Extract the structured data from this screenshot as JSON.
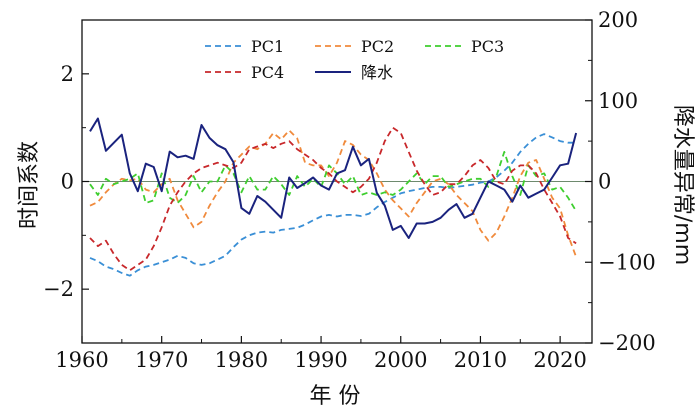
{
  "chart_data": {
    "type": "line",
    "xlabel": "年 份",
    "ylabel_left": "时间系数",
    "ylabel_right": "降水量异常/mm",
    "xlim": [
      1960,
      2024
    ],
    "ylim_left": [
      -3,
      3
    ],
    "ylim_right": [
      -200,
      200
    ],
    "x_ticks": [
      "1960",
      "1970",
      "1980",
      "1990",
      "2000",
      "2010",
      "2020"
    ],
    "y_ticks_left": [
      "−2",
      "0",
      "2"
    ],
    "y_ticks_right": [
      "−200",
      "−100",
      "0",
      "100",
      "200"
    ],
    "zero_line": true,
    "legend_position": "top-center",
    "x": [
      1961,
      1962,
      1963,
      1964,
      1965,
      1966,
      1967,
      1968,
      1969,
      1970,
      1971,
      1972,
      1973,
      1974,
      1975,
      1976,
      1977,
      1978,
      1979,
      1980,
      1981,
      1982,
      1983,
      1984,
      1985,
      1986,
      1987,
      1988,
      1989,
      1990,
      1991,
      1992,
      1993,
      1994,
      1995,
      1996,
      1997,
      1998,
      1999,
      2000,
      2001,
      2002,
      2003,
      2004,
      2005,
      2006,
      2007,
      2008,
      2009,
      2010,
      2011,
      2012,
      2013,
      2014,
      2015,
      2016,
      2017,
      2018,
      2019,
      2020,
      2021,
      2022
    ],
    "series": [
      {
        "name": "PC1",
        "axis": "left",
        "color": "#3a8fd6",
        "dash": "6,4",
        "values": [
          -1.42,
          -1.48,
          -1.58,
          -1.63,
          -1.7,
          -1.75,
          -1.65,
          -1.58,
          -1.55,
          -1.5,
          -1.45,
          -1.38,
          -1.42,
          -1.52,
          -1.55,
          -1.52,
          -1.45,
          -1.38,
          -1.22,
          -1.08,
          -1.0,
          -0.95,
          -0.93,
          -0.95,
          -0.9,
          -0.88,
          -0.86,
          -0.8,
          -0.72,
          -0.65,
          -0.62,
          -0.65,
          -0.62,
          -0.62,
          -0.64,
          -0.6,
          -0.48,
          -0.38,
          -0.3,
          -0.22,
          -0.18,
          -0.15,
          -0.12,
          -0.1,
          -0.1,
          -0.12,
          -0.1,
          -0.08,
          -0.06,
          -0.02,
          0.0,
          0.08,
          0.2,
          0.35,
          0.55,
          0.7,
          0.82,
          0.88,
          0.82,
          0.75,
          0.72,
          0.72
        ]
      },
      {
        "name": "PC2",
        "axis": "left",
        "color": "#f08a3c",
        "dash": "6,4",
        "values": [
          -0.45,
          -0.38,
          -0.2,
          -0.05,
          0.05,
          0.02,
          0.05,
          -0.15,
          -0.2,
          -0.05,
          0.05,
          -0.35,
          -0.6,
          -0.85,
          -0.75,
          -0.45,
          -0.2,
          0.0,
          0.35,
          0.5,
          0.65,
          0.6,
          0.7,
          0.9,
          0.78,
          0.95,
          0.8,
          0.35,
          0.3,
          0.3,
          0.1,
          0.35,
          0.75,
          0.68,
          0.5,
          0.4,
          0.15,
          -0.15,
          -0.35,
          -0.5,
          -0.65,
          -0.4,
          -0.2,
          0.0,
          0.05,
          -0.05,
          -0.25,
          -0.4,
          -0.55,
          -0.9,
          -1.1,
          -0.95,
          -0.65,
          -0.3,
          0.1,
          0.35,
          0.4,
          0.05,
          -0.3,
          -0.5,
          -1.0,
          -1.4
        ]
      },
      {
        "name": "PC3",
        "axis": "left",
        "color": "#3fce2f",
        "dash": "6,4",
        "values": [
          -0.05,
          -0.25,
          0.05,
          -0.05,
          0.0,
          0.05,
          0.15,
          -0.4,
          -0.35,
          0.15,
          -0.3,
          -0.4,
          -0.25,
          0.1,
          -0.2,
          0.0,
          0.0,
          0.3,
          0.15,
          -0.2,
          0.1,
          -0.15,
          -0.15,
          0.1,
          -0.05,
          -0.25,
          0.1,
          -0.1,
          0.05,
          -0.1,
          0.3,
          0.15,
          -0.05,
          0.1,
          -0.25,
          -0.2,
          -0.25,
          -0.2,
          -0.25,
          -0.15,
          0.0,
          0.15,
          -0.05,
          0.1,
          0.1,
          -0.1,
          -0.05,
          0.0,
          0.05,
          0.05,
          -0.1,
          0.1,
          0.55,
          0.1,
          -0.25,
          0.3,
          0.1,
          0.15,
          -0.15,
          -0.1,
          -0.3,
          -0.55
        ]
      },
      {
        "name": "PC4",
        "axis": "left",
        "color": "#c8282b",
        "dash": "6,4",
        "values": [
          -1.05,
          -1.2,
          -1.1,
          -1.35,
          -1.55,
          -1.65,
          -1.55,
          -1.45,
          -1.2,
          -0.85,
          -0.45,
          -0.2,
          0.0,
          0.15,
          0.25,
          0.3,
          0.35,
          0.3,
          0.25,
          0.35,
          0.6,
          0.65,
          0.7,
          0.62,
          0.7,
          0.75,
          0.6,
          0.5,
          0.4,
          0.25,
          0.15,
          0.0,
          -0.1,
          -0.2,
          -0.1,
          0.05,
          0.35,
          0.75,
          1.0,
          0.9,
          0.55,
          0.2,
          -0.05,
          -0.25,
          -0.2,
          -0.05,
          -0.05,
          0.1,
          0.3,
          0.4,
          0.25,
          0.0,
          -0.05,
          0.2,
          0.3,
          0.3,
          0.15,
          -0.15,
          -0.4,
          -0.65,
          -1.05,
          -1.15
        ]
      },
      {
        "name": "降水",
        "axis": "right",
        "color": "#1a237e",
        "dash": "",
        "values": [
          62,
          78,
          38,
          48,
          58,
          10,
          -12,
          22,
          18,
          -12,
          37,
          30,
          32,
          28,
          70,
          54,
          45,
          40,
          24,
          -33,
          -40,
          -18,
          -25,
          -35,
          -45,
          5,
          -8,
          -2,
          5,
          -5,
          -10,
          10,
          14,
          43,
          20,
          28,
          -14,
          -30,
          -60,
          -55,
          -70,
          -52,
          -52,
          -50,
          -45,
          -35,
          -28,
          -45,
          -40,
          -20,
          0,
          -5,
          -10,
          -25,
          -5,
          -20,
          -15,
          -10,
          5,
          20,
          22,
          60
        ]
      }
    ]
  }
}
